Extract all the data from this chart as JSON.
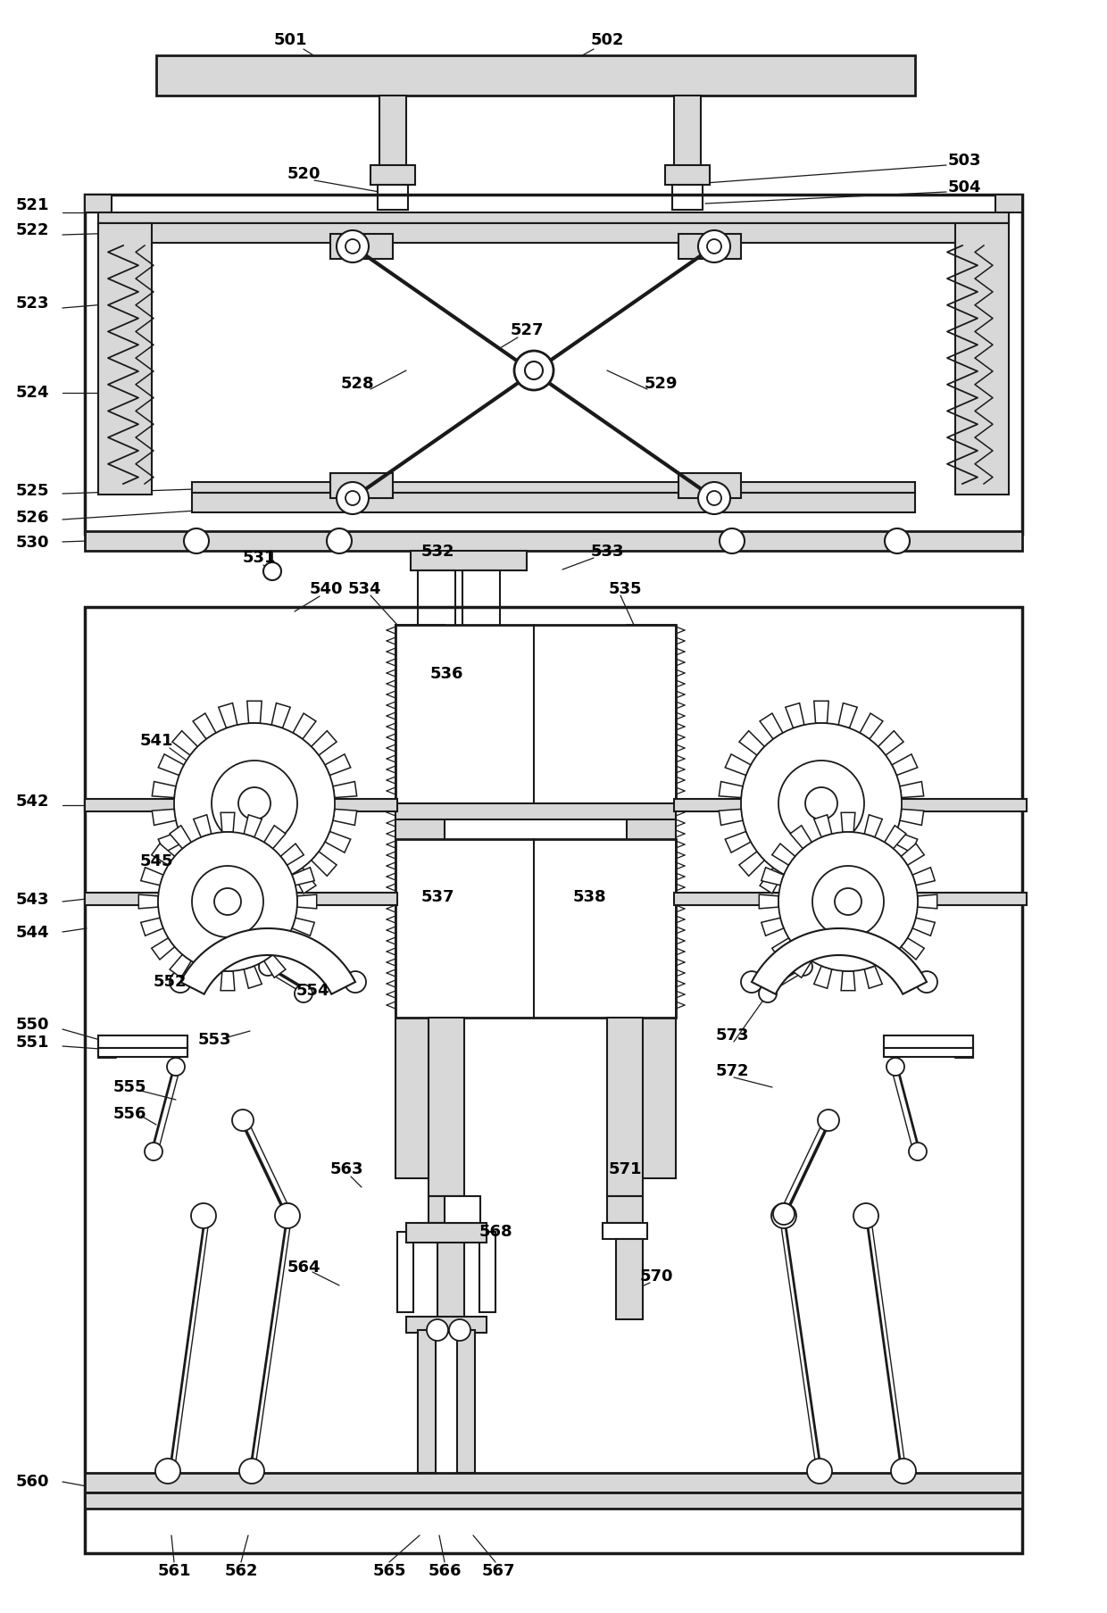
{
  "bg_color": "#ffffff",
  "line_color": "#1a1a1a",
  "fill_light": "#d8d8d8",
  "fig_width": 12.4,
  "fig_height": 18.07
}
